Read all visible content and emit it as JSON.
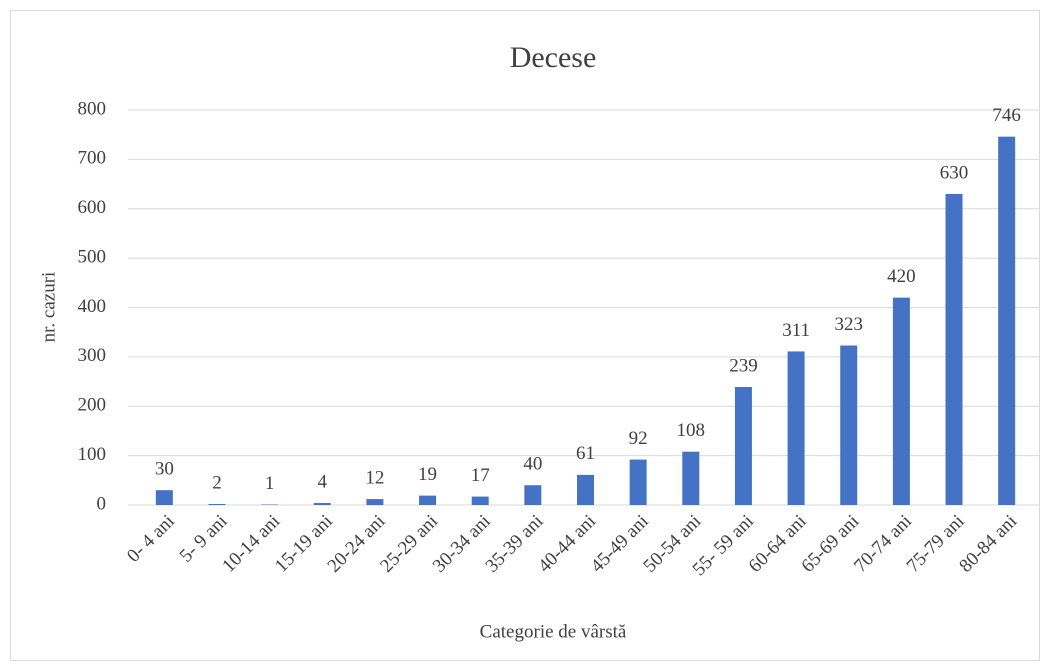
{
  "chart_data": {
    "type": "bar",
    "title": "Decese",
    "x_label": "Categorie de vârstă",
    "y_label": "nr. cazuri",
    "categories": [
      "0- 4 ani",
      "5- 9 ani",
      "10-14 ani",
      "15-19 ani",
      "20-24 ani",
      "25-29 ani",
      "30-34 ani",
      "35-39 ani",
      "40-44 ani",
      "45-49 ani",
      "50-54 ani",
      "55- 59 ani",
      "60-64 ani",
      "65-69 ani",
      "70-74 ani",
      "75-79 ani",
      "80-84 ani"
    ],
    "values": [
      30,
      2,
      1,
      4,
      12,
      19,
      17,
      40,
      61,
      92,
      108,
      239,
      311,
      323,
      420,
      630,
      746
    ],
    "color": "#4472c4",
    "ylim": [
      0,
      800
    ],
    "yticks": [
      0,
      100,
      200,
      300,
      400,
      500,
      600,
      700,
      800
    ],
    "grid": true,
    "data_labels": true
  }
}
